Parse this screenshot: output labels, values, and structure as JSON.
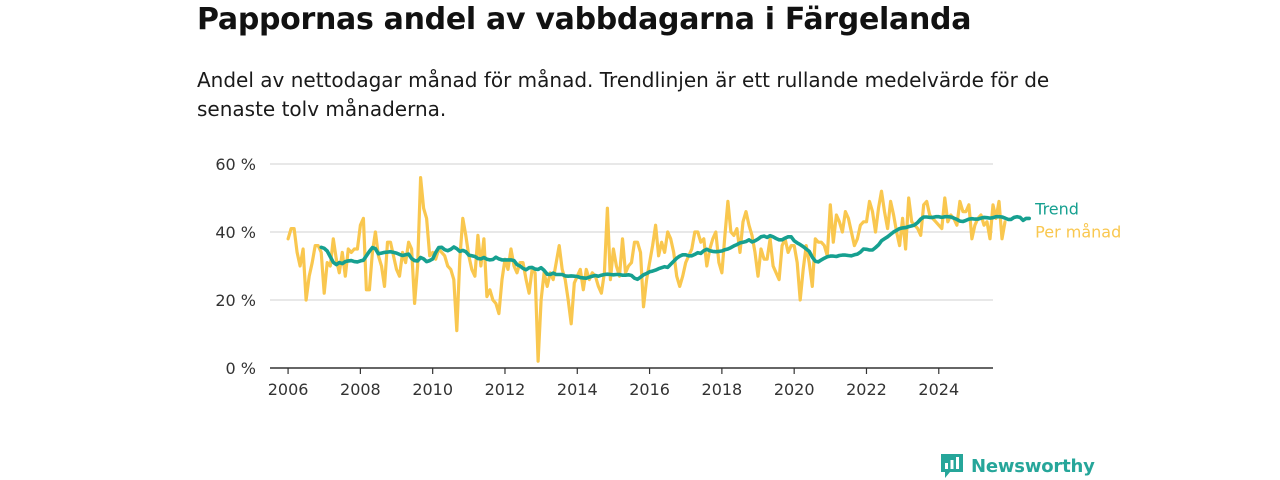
{
  "title": "Pappornas andel av vabbdagarna i Färgelanda",
  "subtitle": "Andel av nettodagar månad för månad. Trendlinjen är ett rullande medelvärde för de senaste tolv månaderna.",
  "brand": {
    "name": "Newsworthy"
  },
  "colors": {
    "monthly": "#f9c74f",
    "trend": "#16a090",
    "grid": "#d9d9d9",
    "axis": "#333333",
    "brand": "#26a69a"
  },
  "chart_data": {
    "type": "line",
    "title": "Pappornas andel av vabbdagarna i Färgelanda",
    "subtitle": "Andel av nettodagar månad för månad. Trendlinjen är ett rullande medelvärde för de senaste tolv månaderna.",
    "xlabel": "",
    "ylabel": "",
    "x_range": [
      "2006-01",
      "2024-12"
    ],
    "ylim": [
      0,
      60
    ],
    "y_ticks": [
      0,
      20,
      40,
      60
    ],
    "y_tick_labels": [
      "0 %",
      "20 %",
      "40 %",
      "60 %"
    ],
    "x_ticks": [
      2006,
      2008,
      2010,
      2012,
      2014,
      2016,
      2018,
      2020,
      2022,
      2024
    ],
    "x_tick_labels": [
      "2006",
      "2008",
      "2010",
      "2012",
      "2014",
      "2016",
      "2018",
      "2020",
      "2022",
      "2024"
    ],
    "grid": "horizontal",
    "legend": "direct labels at line ends",
    "series": [
      {
        "name": "Per månad",
        "start": "2006-01",
        "frequency": "monthly",
        "values": [
          38,
          41,
          41,
          34,
          30,
          35,
          20,
          27,
          31,
          36,
          36,
          34,
          22,
          31,
          30,
          38,
          32,
          28,
          34,
          27,
          35,
          34,
          35,
          35,
          42,
          44,
          23,
          23,
          34,
          40,
          33,
          30,
          24,
          37,
          37,
          33,
          29,
          27,
          34,
          31,
          37,
          35,
          19,
          30,
          56,
          47,
          44,
          33,
          34,
          32,
          35,
          34,
          33,
          30,
          29,
          26,
          11,
          32,
          44,
          39,
          33,
          29,
          27,
          39,
          30,
          38,
          21,
          23,
          20,
          19,
          16,
          26,
          32,
          29,
          35,
          30,
          28,
          31,
          31,
          26,
          22,
          29,
          28,
          2,
          20,
          28,
          24,
          28,
          26,
          31,
          36,
          29,
          26,
          20,
          13,
          25,
          27,
          29,
          23,
          29,
          26,
          28,
          27,
          24,
          22,
          28,
          47,
          26,
          35,
          30,
          27,
          38,
          28,
          30,
          31,
          37,
          37,
          34,
          18,
          26,
          31,
          36,
          42,
          33,
          37,
          34,
          40,
          38,
          34,
          27,
          24,
          27,
          31,
          33,
          35,
          40,
          40,
          37,
          38,
          30,
          35,
          38,
          40,
          31,
          28,
          39,
          49,
          40,
          39,
          41,
          34,
          43,
          46,
          42,
          39,
          34,
          27,
          35,
          32,
          32,
          38,
          30,
          28,
          26,
          36,
          38,
          34,
          36,
          36,
          31,
          20,
          29,
          36,
          31,
          24,
          38,
          37,
          37,
          36,
          33,
          48,
          37,
          45,
          43,
          40,
          46,
          44,
          40,
          36,
          38,
          42,
          43,
          43,
          49,
          46,
          40,
          47,
          52,
          46,
          41,
          49,
          45,
          40,
          36,
          44,
          35,
          50,
          43,
          42,
          41,
          39,
          48,
          49,
          45,
          44,
          43,
          42,
          41,
          50,
          43,
          45,
          44,
          42,
          49,
          46,
          46,
          48,
          38,
          42,
          44,
          45,
          42,
          43,
          38,
          48,
          44,
          49,
          38,
          43
        ]
      },
      {
        "name": "Trend",
        "start": "2006-12",
        "frequency": "monthly",
        "values": [
          35.5,
          35.2,
          34.4,
          32.7,
          31.1,
          30.4,
          31.0,
          30.7,
          31.3,
          31.5,
          31.6,
          31.3,
          31.2,
          31.5,
          31.7,
          33.0,
          34.3,
          35.4,
          35.1,
          33.6,
          33.8,
          34.0,
          34.1,
          34.2,
          34.0,
          33.8,
          33.4,
          33.1,
          33.3,
          33.5,
          32.2,
          31.6,
          31.5,
          32.5,
          32.1,
          31.3,
          31.6,
          32.1,
          34.0,
          35.4,
          35.5,
          34.8,
          34.5,
          34.9,
          35.6,
          35.1,
          34.3,
          34.6,
          34.2,
          33.2,
          33.0,
          32.8,
          32.2,
          32.1,
          32.5,
          32.0,
          31.8,
          31.9,
          32.6,
          32.1,
          31.8,
          31.8,
          31.8,
          31.8,
          31.6,
          30.4,
          30.0,
          29.3,
          28.9,
          29.5,
          29.6,
          29.1,
          29.0,
          29.5,
          28.7,
          27.6,
          27.5,
          27.9,
          27.5,
          27.5,
          27.5,
          27.1,
          27.0,
          27.1,
          27.0,
          26.9,
          26.6,
          26.5,
          26.4,
          26.7,
          27.0,
          27.2,
          27.0,
          27.3,
          27.5,
          27.6,
          27.5,
          27.4,
          27.5,
          27.5,
          27.3,
          27.3,
          27.4,
          27.2,
          26.4,
          26.1,
          26.7,
          27.4,
          27.8,
          28.3,
          28.5,
          28.8,
          29.2,
          29.5,
          29.8,
          29.6,
          30.5,
          31.4,
          32.3,
          32.9,
          33.3,
          33.3,
          33.0,
          33.0,
          33.4,
          33.9,
          33.7,
          34.5,
          34.9,
          34.5,
          34.3,
          34.2,
          34.3,
          34.4,
          34.8,
          35.0,
          35.4,
          35.9,
          36.3,
          36.8,
          37.0,
          37.2,
          37.7,
          37.1,
          37.4,
          37.9,
          38.6,
          38.8,
          38.4,
          38.9,
          38.6,
          38.1,
          37.7,
          37.7,
          38.2,
          38.6,
          38.6,
          37.4,
          36.8,
          36.3,
          35.7,
          35.0,
          34.3,
          32.6,
          31.4,
          31.2,
          31.8,
          32.3,
          32.7,
          32.9,
          32.9,
          32.8,
          33.1,
          33.2,
          33.2,
          33.1,
          33.0,
          33.3,
          33.5,
          34.1,
          35.0,
          34.9,
          34.7,
          34.7,
          35.4,
          36.2,
          37.4,
          38.0,
          38.6,
          39.3,
          40.0,
          40.5,
          41.0,
          41.2,
          41.3,
          41.6,
          41.8,
          42.1,
          42.8,
          43.8,
          44.4,
          44.4,
          44.3,
          44.3,
          44.5,
          44.5,
          44.3,
          44.5,
          44.5,
          44.4,
          44.1,
          43.7,
          43.2,
          43.1,
          43.4,
          43.8,
          43.9,
          43.8,
          43.8,
          44.1,
          44.3,
          44.2,
          44.1,
          44.2,
          44.5,
          44.5,
          44.4,
          44.1,
          43.7,
          43.7,
          44.3,
          44.5,
          44.3,
          43.4,
          44.0,
          44.0
        ]
      }
    ]
  }
}
